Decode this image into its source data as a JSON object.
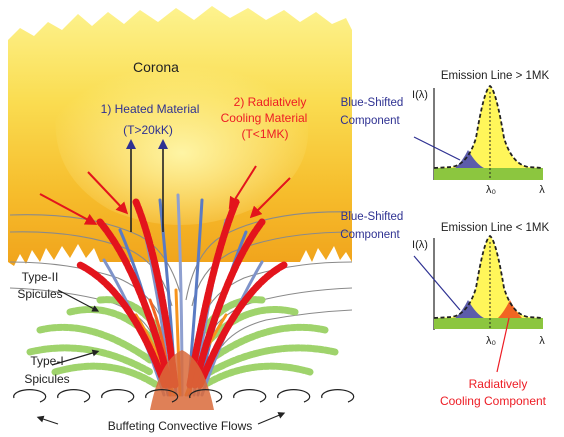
{
  "labels": {
    "corona": "Corona",
    "heated_line1": "1) Heated Material",
    "heated_line2": "(T>20kK)",
    "cooling_line1": "2) Radiatively",
    "cooling_line2": "Cooling Material",
    "cooling_line3": "(T<1MK)",
    "type2_line1": "Type-II",
    "type2_line2": "Spicules",
    "type1_line1": "Type-I",
    "type1_line2": "Spicules",
    "convective": "Buffeting Convective Flows"
  },
  "panel_top": {
    "title": "Emission Line > 1MK",
    "ylabel": "I(λ)",
    "xlabel": "λ",
    "center_label": "λ₀",
    "component_line1": "Blue-Shifted",
    "component_line2": "Component"
  },
  "panel_bottom": {
    "title": "Emission Line < 1MK",
    "ylabel": "I(λ)",
    "xlabel": "λ",
    "center_label": "λ₀",
    "blue_line1": "Blue-Shifted",
    "blue_line2": "Component",
    "red_line1": "Radiatively",
    "red_line2": "Cooling Component"
  },
  "colors": {
    "corona_top": "#fdf08a",
    "corona_mid": "#f8c52c",
    "corona_bottom": "#f1a21a",
    "blue_text": "#2e3192",
    "red_text": "#ed1c24",
    "spicule_red": "#e3141c",
    "spicule_blue": "#5b7bc3",
    "spicule_green": "#9fd36c",
    "profile_yellow": "#fff65a",
    "profile_green": "#8cc63f",
    "blue_component": "#5c5caa",
    "red_component": "#f26522"
  }
}
